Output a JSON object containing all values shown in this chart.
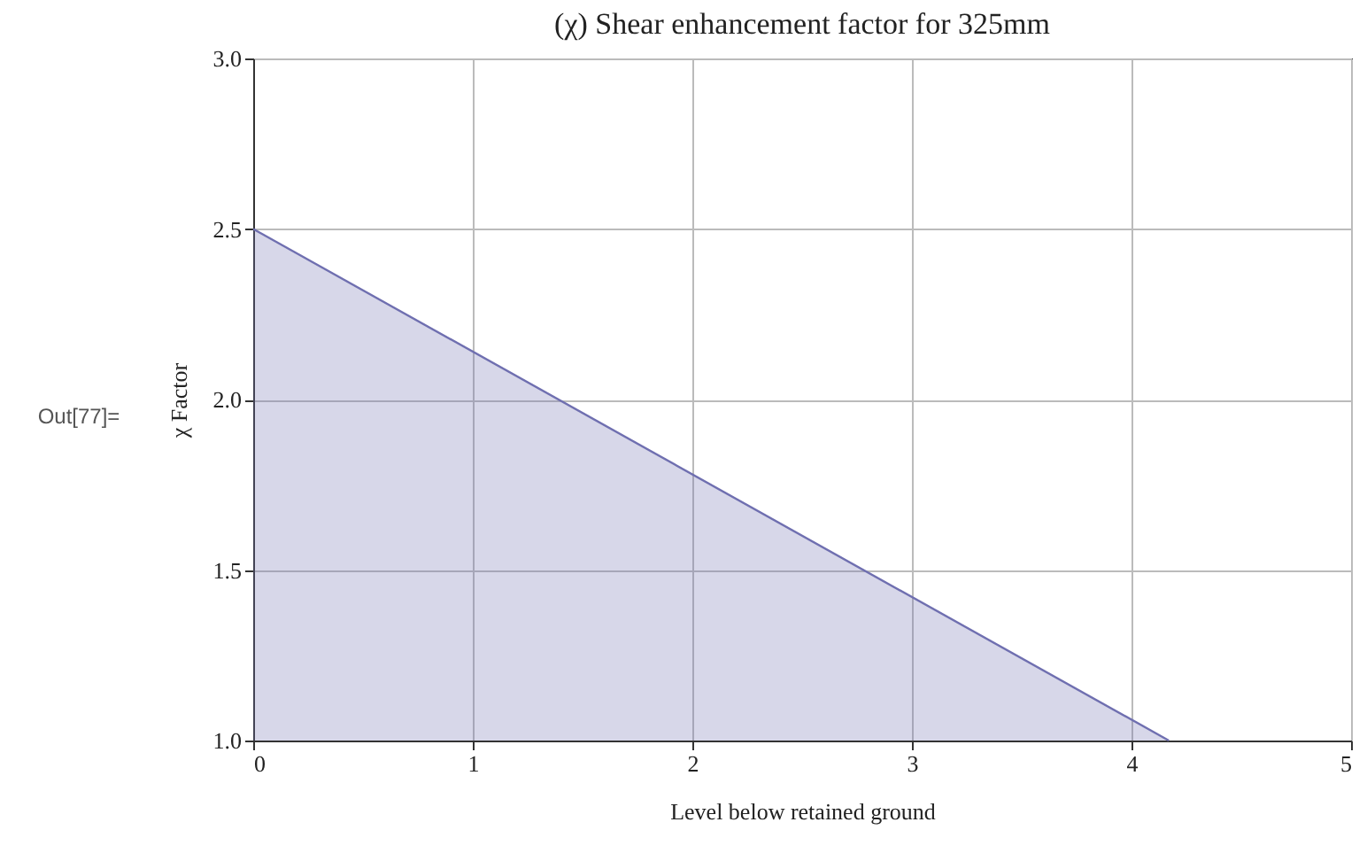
{
  "chart_data": {
    "type": "area",
    "title": "(χ) Shear enhancement factor for 325mm",
    "xlabel": "Level below retained ground",
    "ylabel": "χ Factor",
    "annotations": [
      "Out[77]="
    ],
    "series": [
      {
        "color": "#6f6fb0",
        "x": [
          0,
          4.17
        ],
        "values": [
          2.5,
          1.0
        ]
      }
    ],
    "xlim": [
      0,
      5
    ],
    "xticks": [
      0,
      1,
      2,
      3,
      4,
      5
    ],
    "ylim": [
      1,
      3
    ],
    "yticks": [
      {
        "value": 1,
        "label": "1.0"
      },
      {
        "value": 1.5,
        "label": "1.5"
      },
      {
        "value": 2,
        "label": "2.0"
      },
      {
        "value": 2.5,
        "label": "2.5"
      },
      {
        "value": 3,
        "label": "3.0"
      }
    ],
    "grid": true
  }
}
